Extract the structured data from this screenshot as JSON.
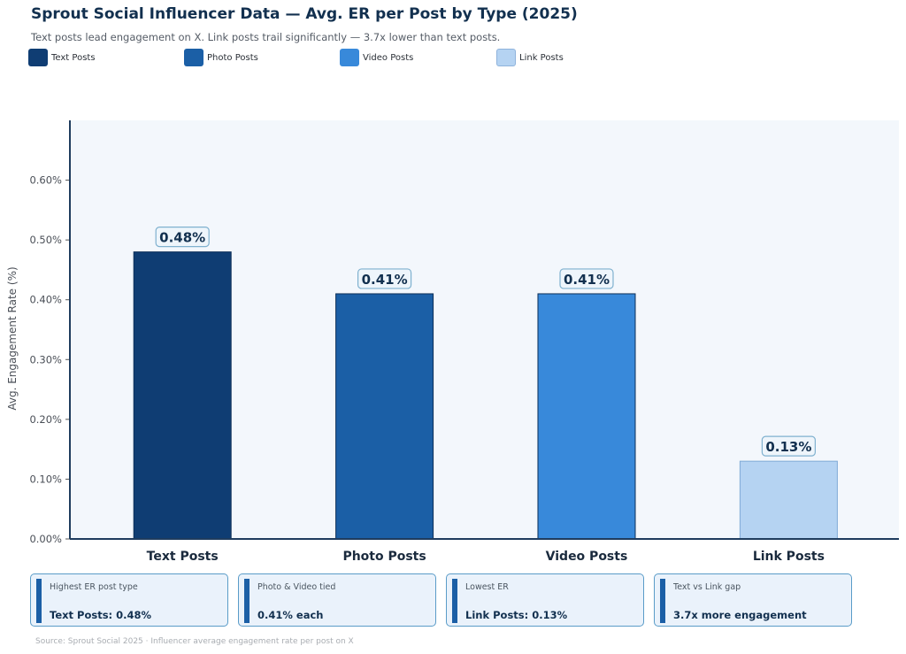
{
  "chart_data": {
    "type": "bar",
    "title": "Sprout Social Influencer Data — Avg. ER per Post by Type (2025)",
    "subtitle": "Text posts lead engagement on X. Link posts trail significantly — 3.7x lower than text posts.",
    "categories": [
      "Text Posts",
      "Photo Posts",
      "Video Posts",
      "Link Posts"
    ],
    "values": [
      0.48,
      0.41,
      0.41,
      0.13
    ],
    "data_labels": [
      "0.48%",
      "0.41%",
      "0.41%",
      "0.13%"
    ],
    "colors": [
      "#0f3d73",
      "#1b5fa6",
      "#3889da",
      "#b5d3f2"
    ],
    "xlabel": "",
    "ylabel": "Avg. Engagement Rate (%)",
    "ylim": [
      0,
      0.7
    ],
    "yticks": [
      0.0,
      0.1,
      0.2,
      0.3,
      0.4,
      0.5,
      0.6
    ],
    "ytick_labels": [
      "0.00%",
      "0.10%",
      "0.20%",
      "0.30%",
      "0.40%",
      "0.50%",
      "0.60%"
    ],
    "legend": [
      "Text Posts",
      "Photo Posts",
      "Video Posts",
      "Link Posts"
    ],
    "legend_position": "top-left",
    "grid": false
  },
  "cards": [
    {
      "label": "Highest ER post type",
      "value": "Text Posts: 0.48%"
    },
    {
      "label": "Photo & Video tied",
      "value": "0.41% each"
    },
    {
      "label": "Lowest ER",
      "value": "Link Posts: 0.13%"
    },
    {
      "label": "Text vs Link gap",
      "value": "3.7x more engagement"
    }
  ],
  "source": "Source: Sprout Social 2025 · Influencer average engagement rate per post on X",
  "colors": {
    "plot_background": "#f3f7fc",
    "axis": "#1f3c5e",
    "card_accent": "#1b5fa6",
    "card_border": "#5a9cc8"
  }
}
